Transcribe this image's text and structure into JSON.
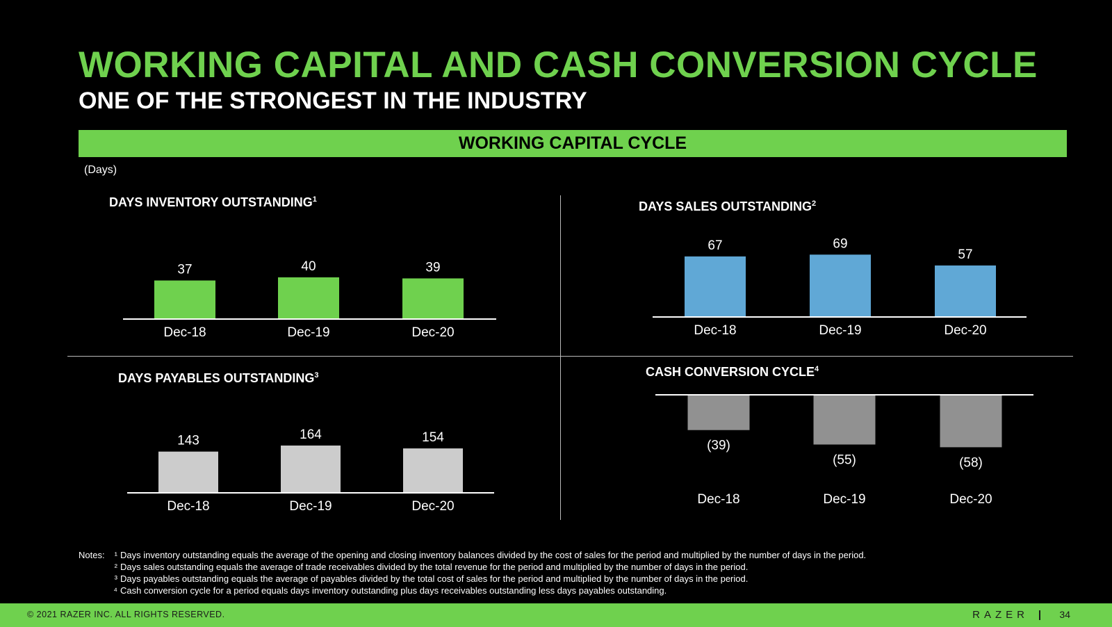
{
  "header": {
    "title": "WORKING CAPITAL AND CASH CONVERSION CYCLE",
    "subtitle": "ONE OF THE STRONGEST IN THE INDUSTRY",
    "banner": "WORKING CAPITAL CYCLE",
    "units": "(Days)"
  },
  "colors": {
    "accent": "#6fd14e",
    "dio": "#6fd14e",
    "dso": "#60a8d6",
    "dpo": "#cccccc",
    "ccc": "#919191"
  },
  "chart_data": [
    {
      "type": "bar",
      "title": "DAYS INVENTORY OUTSTANDING",
      "footnote": "1",
      "categories": [
        "Dec-18",
        "Dec-19",
        "Dec-20"
      ],
      "values": [
        37,
        40,
        39
      ],
      "labels": [
        "37",
        "40",
        "39"
      ]
    },
    {
      "type": "bar",
      "title": "DAYS SALES OUTSTANDING",
      "footnote": "2",
      "categories": [
        "Dec-18",
        "Dec-19",
        "Dec-20"
      ],
      "values": [
        67,
        69,
        57
      ],
      "labels": [
        "67",
        "69",
        "57"
      ]
    },
    {
      "type": "bar",
      "title": "DAYS PAYABLES OUTSTANDING",
      "footnote": "3",
      "categories": [
        "Dec-18",
        "Dec-19",
        "Dec-20"
      ],
      "values": [
        143,
        164,
        154
      ],
      "labels": [
        "143",
        "164",
        "154"
      ]
    },
    {
      "type": "bar",
      "title": "CASH CONVERSION CYCLE",
      "footnote": "4",
      "categories": [
        "Dec-18",
        "Dec-19",
        "Dec-20"
      ],
      "values": [
        -39,
        -55,
        -58
      ],
      "labels": [
        "(39)",
        "(55)",
        "(58)"
      ]
    }
  ],
  "notes": {
    "prefix": "Notes:",
    "items": [
      {
        "mark": "¹",
        "text": "Days inventory outstanding equals the average of the opening and closing inventory balances divided by the cost of sales for the period and multiplied by the number of days in the period."
      },
      {
        "mark": "²",
        "text": "Days sales outstanding equals the average of trade receivables divided by the total revenue for the period and multiplied by the number of days in the period."
      },
      {
        "mark": "³",
        "text": "Days payables outstanding equals the average of payables divided by the total cost of sales for the period and multiplied by the number of days in the period."
      },
      {
        "mark": "⁴",
        "text": "Cash conversion cycle for a period equals days inventory outstanding plus days receivables outstanding less days payables outstanding."
      }
    ]
  },
  "footer": {
    "copyright": "© 2021 RAZER INC. ALL RIGHTS RESERVED.",
    "brand": "RAZER",
    "page": "34"
  }
}
